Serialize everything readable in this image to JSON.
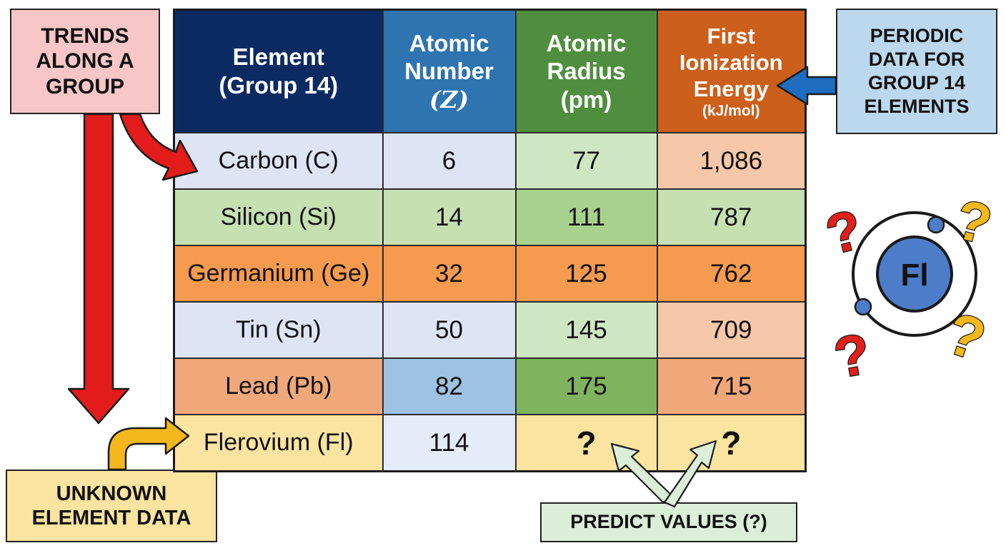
{
  "callouts": {
    "trends": [
      "TRENDS",
      "ALONG A",
      "GROUP"
    ],
    "periodic": [
      "PERIODIC",
      "DATA FOR",
      "GROUP 14",
      "ELEMENTS"
    ],
    "unknown": [
      "UNKNOWN",
      "ELEMENT DATA"
    ],
    "predict": "PREDICT VALUES (?)"
  },
  "table": {
    "headers": {
      "element": [
        "Element",
        "(Group 14)"
      ],
      "atomic_number": [
        "Atomic",
        "Number",
        "(Z)"
      ],
      "atomic_radius": [
        "Atomic",
        "Radius",
        "(pm)"
      ],
      "ionization": [
        "First",
        "Ionization",
        "Energy",
        "(kJ/mol)"
      ]
    },
    "rows": [
      {
        "element": "Carbon (C)",
        "z": "6",
        "radius": "77",
        "energy": "1,086"
      },
      {
        "element": "Silicon (Si)",
        "z": "14",
        "radius": "111",
        "energy": "787"
      },
      {
        "element": "Germanium (Ge)",
        "z": "32",
        "radius": "125",
        "energy": "762"
      },
      {
        "element": "Tin (Sn)",
        "z": "50",
        "radius": "145",
        "energy": "709"
      },
      {
        "element": "Lead (Pb)",
        "z": "82",
        "radius": "175",
        "energy": "715"
      },
      {
        "element": "Flerovium (Fl)",
        "z": "114",
        "radius": "?",
        "energy": "?"
      }
    ]
  },
  "atom_icon": {
    "symbol": "Fl",
    "question_mark": "?"
  },
  "colors": {
    "header_element": "#0c2a62",
    "header_number": "#2e74b0",
    "header_radius": "#4f8e3e",
    "header_ionization": "#cc5f1c",
    "arrow_red": "#e21b1b",
    "arrow_gold": "#f5b81c",
    "arrow_blue": "#1f6cc0",
    "question_red": "#e0201a",
    "question_gold": "#f3b81c"
  }
}
